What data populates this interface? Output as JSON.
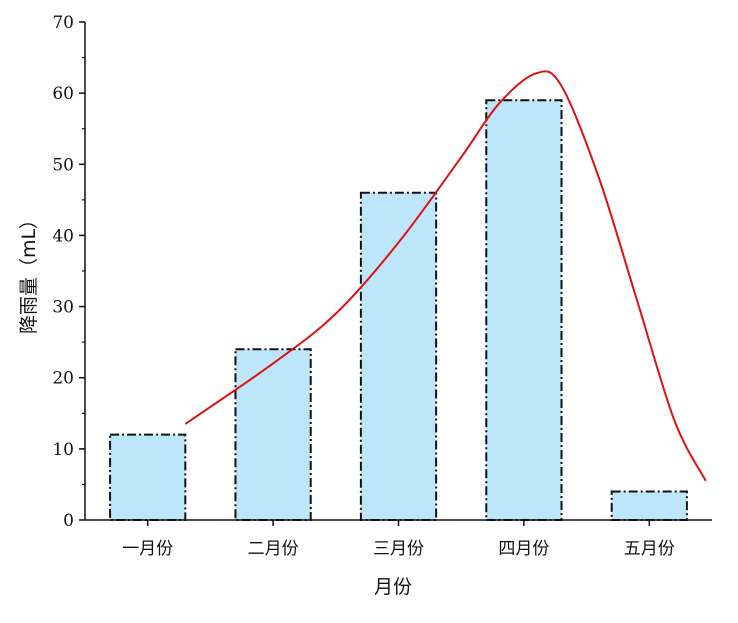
{
  "chart_data": {
    "type": "bar",
    "title": "",
    "xlabel": "月份",
    "ylabel": "降雨量（mL）",
    "categories": [
      "一月份",
      "二月份",
      "三月份",
      "四月份",
      "五月份"
    ],
    "values": [
      12,
      24,
      46,
      59,
      4
    ],
    "ylim": [
      0,
      70
    ],
    "yticks": [
      0,
      10,
      20,
      30,
      40,
      50,
      60,
      70
    ],
    "grid": false,
    "legend": "none",
    "bar_fill": "#bde6fb",
    "bar_edge": "#111111",
    "trend_line": {
      "type": "line",
      "color": "#dd1111",
      "points": [
        {
          "x": 0.3,
          "y": 13.5
        },
        {
          "x": 1.0,
          "y": 22
        },
        {
          "x": 1.5,
          "y": 29
        },
        {
          "x": 2.0,
          "y": 39
        },
        {
          "x": 2.5,
          "y": 51
        },
        {
          "x": 2.8,
          "y": 58.5
        },
        {
          "x": 3.1,
          "y": 62.8
        },
        {
          "x": 3.3,
          "y": 61
        },
        {
          "x": 3.6,
          "y": 48
        },
        {
          "x": 3.9,
          "y": 31
        },
        {
          "x": 4.2,
          "y": 14
        },
        {
          "x": 4.45,
          "y": 5.5
        }
      ]
    }
  }
}
